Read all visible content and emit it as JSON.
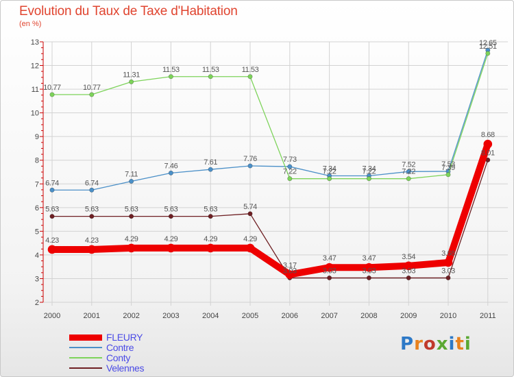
{
  "header": {
    "title": "Evolution du Taux de Taxe d'Habitation",
    "subtitle": "(en %)"
  },
  "brand": {
    "text": "Proxiti",
    "letter_colors": [
      "#2d79c7",
      "#e8821e",
      "#c0392b",
      "#5aa832",
      "#2d79c7",
      "#e8821e",
      "#5aa832"
    ]
  },
  "colors": {
    "axis": "#cc0000",
    "grid": "#d2d2d2",
    "tick_text": "#444444",
    "label_text": "#555555"
  },
  "chart_data": {
    "type": "line",
    "title": "Evolution du Taux de Taxe d'Habitation",
    "ylabel": "(en %)",
    "x": [
      "2000",
      "2001",
      "2002",
      "2003",
      "2004",
      "2005",
      "2006",
      "2007",
      "2008",
      "2009",
      "2010",
      "2011"
    ],
    "ylim": [
      2,
      13
    ],
    "yticks": [
      "2",
      "3",
      "4",
      "5",
      "6",
      "7",
      "8",
      "9",
      "10",
      "11",
      "12",
      "13"
    ],
    "grid": true,
    "legend": "bottom-left",
    "series": [
      {
        "name": "Velennes",
        "color": "#6e1f23",
        "values": [
          5.63,
          5.63,
          5.63,
          5.63,
          5.63,
          5.74,
          3.03,
          3.03,
          3.03,
          3.03,
          3.03,
          8.01
        ],
        "labels": [
          "5.63",
          "5.63",
          "5.63",
          "5.63",
          "5.63",
          "5.74",
          "3.03",
          "3.03",
          "3.03",
          "3.03",
          "3.03",
          "8.01"
        ]
      },
      {
        "name": "Contre",
        "color": "#4b90c8",
        "values": [
          6.74,
          6.74,
          7.11,
          7.46,
          7.61,
          7.76,
          7.73,
          7.34,
          7.34,
          7.52,
          7.53,
          12.65
        ],
        "labels": [
          "6.74",
          "6.74",
          "7.11",
          "7.46",
          "7.61",
          "7.76",
          "7.73",
          "7.34",
          "7.34",
          "7.52",
          "7.53",
          "12.65"
        ]
      },
      {
        "name": "Conty",
        "color": "#7dd35a",
        "values": [
          10.77,
          10.77,
          11.31,
          11.53,
          11.53,
          11.53,
          7.22,
          7.22,
          7.22,
          7.22,
          7.39,
          12.51
        ],
        "labels": [
          "10.77",
          "10.77",
          "11.31",
          "11.53",
          "11.53",
          "11.53",
          "7.22",
          "7.22",
          "7.22",
          "7.22",
          "7.39",
          "12.51"
        ]
      },
      {
        "name": "FLEURY",
        "color": "#ee0000",
        "values": [
          4.23,
          4.23,
          4.29,
          4.29,
          4.29,
          4.29,
          3.17,
          3.47,
          3.47,
          3.54,
          3.68,
          8.68
        ],
        "labels": [
          "4.23",
          "4.23",
          "4.29",
          "4.29",
          "4.29",
          "4.29",
          "3.17",
          "3.47",
          "3.47",
          "3.54",
          "3.68",
          "8.68"
        ]
      }
    ],
    "legend_order": [
      "FLEURY",
      "Contre",
      "Conty",
      "Velennes"
    ]
  }
}
